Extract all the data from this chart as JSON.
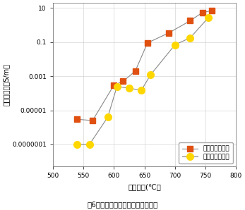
{
  "xlabel": "炭化温度(℃）",
  "ylabel": "電気伝導度（S/m）",
  "xlim": [
    500,
    800
  ],
  "xticks": [
    500,
    550,
    600,
    650,
    700,
    750,
    800
  ],
  "ytick_labels": [
    "0.0000001",
    "0.00001",
    "0.001",
    "0.1",
    "10"
  ],
  "ytick_values": [
    1e-07,
    1e-05,
    0.001,
    0.1,
    10
  ],
  "series1_name": "杉板炭（乾燥）",
  "series1_x": [
    540,
    565,
    600,
    615,
    635,
    655,
    690,
    725,
    745,
    760
  ],
  "series1_y": [
    3e-06,
    2.5e-06,
    0.0003,
    0.0005,
    0.002,
    0.09,
    0.35,
    1.8,
    5.5,
    7.0
  ],
  "series1_color": "#E05010",
  "series1_marker": "s",
  "series2_name": "杉粉炭（乾燥）",
  "series2_x": [
    540,
    560,
    590,
    605,
    625,
    645,
    660,
    700,
    725,
    755
  ],
  "series2_y": [
    1e-07,
    1e-07,
    4e-06,
    0.00025,
    0.0002,
    0.00015,
    0.0012,
    0.07,
    0.18,
    2.8
  ],
  "series2_color": "#FFD700",
  "series2_marker": "o",
  "line_color": "#888888",
  "bg_color": "#ffffff",
  "caption": "図6　杉の粉炭と板炭の電導度比較"
}
